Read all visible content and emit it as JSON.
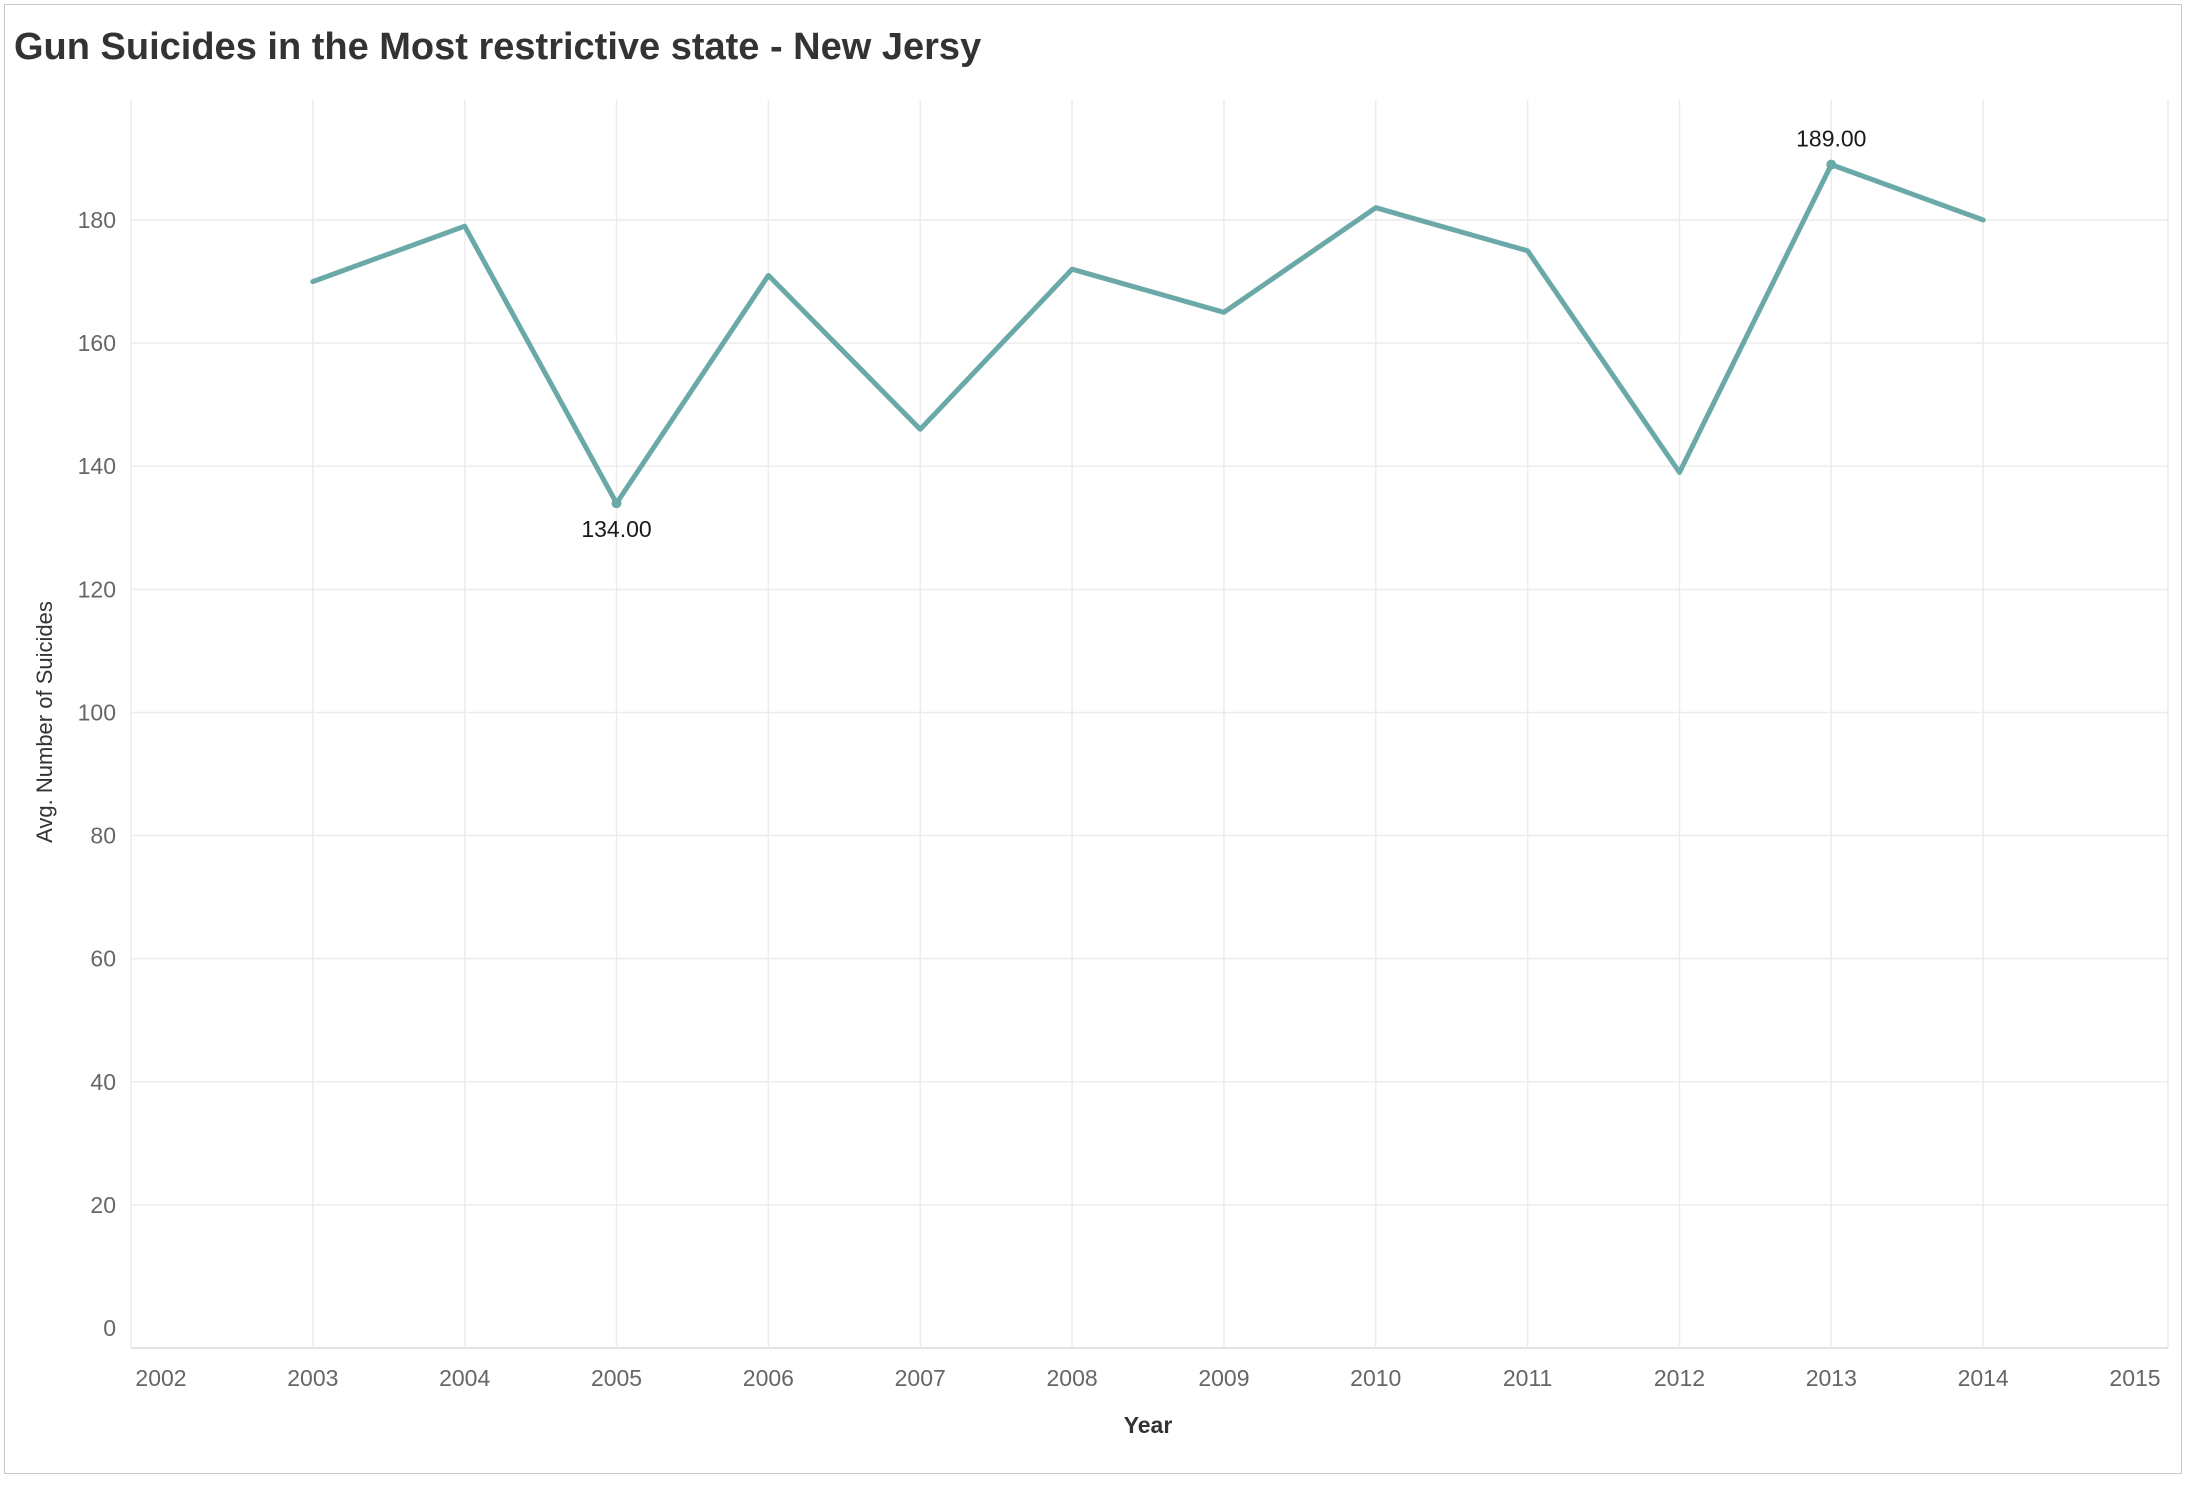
{
  "chart_data": {
    "type": "line",
    "title": "Gun Suicides in the Most restrictive state - New Jersy",
    "xlabel": "Year",
    "ylabel": "Avg. Number of Suicides",
    "x_ticks": [
      "2002",
      "2003",
      "2004",
      "2005",
      "2006",
      "2007",
      "2008",
      "2009",
      "2010",
      "2011",
      "2012",
      "2013",
      "2014",
      "2015"
    ],
    "y_ticks": [
      "0",
      "20",
      "40",
      "60",
      "80",
      "100",
      "120",
      "140",
      "160",
      "180"
    ],
    "xlim": [
      2002,
      2015
    ],
    "ylim": [
      0,
      198
    ],
    "grid": true,
    "series": [
      {
        "x": [
          2003,
          2004,
          2005,
          2006,
          2007,
          2008,
          2009,
          2010,
          2011,
          2012,
          2013,
          2014
        ],
        "values": [
          170,
          179,
          134,
          171,
          146,
          172,
          165,
          182,
          175,
          139,
          189,
          180
        ],
        "color": "#6aa9a7"
      }
    ],
    "annotations": [
      {
        "x": 2005,
        "y": 134,
        "text": "134.00",
        "position": "below"
      },
      {
        "x": 2013,
        "y": 189,
        "text": "189.00",
        "position": "above"
      }
    ]
  }
}
